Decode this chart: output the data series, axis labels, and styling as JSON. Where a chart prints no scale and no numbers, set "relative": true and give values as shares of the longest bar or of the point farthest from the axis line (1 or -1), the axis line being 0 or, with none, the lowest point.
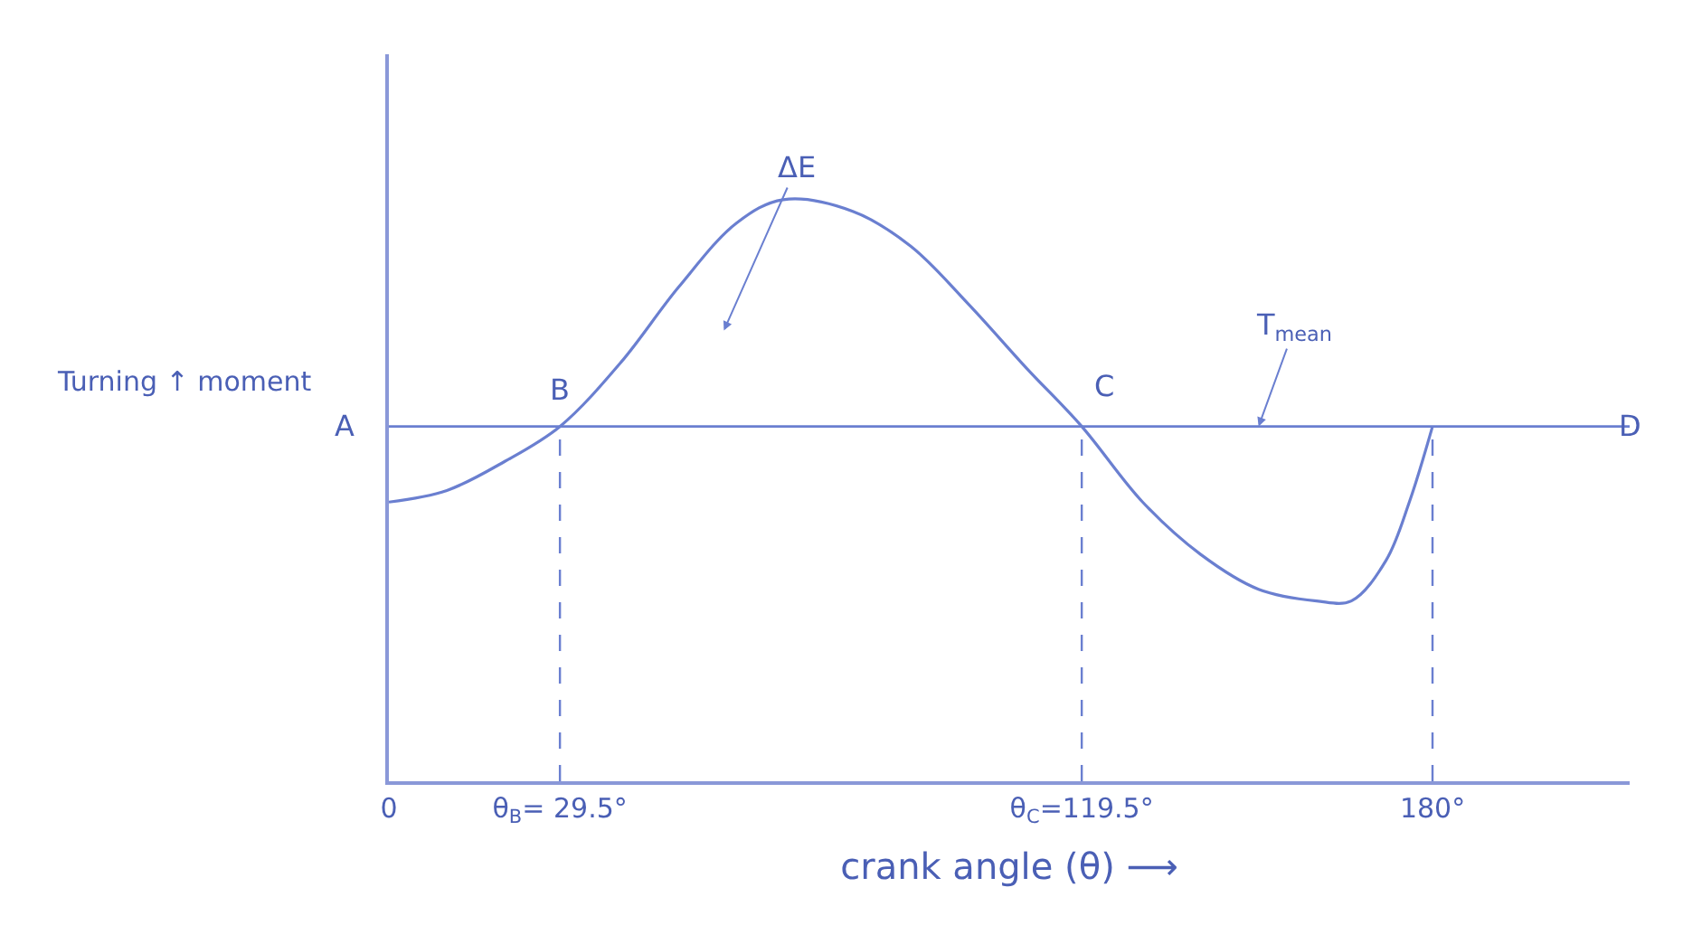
{
  "chart_data": {
    "type": "line",
    "relative": true,
    "xlabel": "crank angle (θ) ⟶",
    "ylabel": "Turning ↑ moment",
    "x": [
      0,
      10,
      20,
      29.5,
      40,
      50,
      60,
      68,
      80,
      90,
      100,
      110,
      119.5,
      130,
      140,
      150,
      160,
      166,
      172,
      176,
      180
    ],
    "series": [
      {
        "color": "#6a7fd0",
        "values": [
          0.48,
          0.5,
          0.55,
          0.61,
          0.72,
          0.85,
          0.96,
          1.0,
          0.98,
          0.92,
          0.82,
          0.71,
          0.61,
          0.48,
          0.39,
          0.33,
          0.31,
          0.31,
          0.38,
          0.48,
          0.61
        ]
      }
    ],
    "xlim": [
      0,
      214
    ],
    "xticks": [
      0,
      {
        "value": 29.5,
        "label": "θ$_{B}$= 29.5°"
      },
      {
        "value": 119.5,
        "label": "θ$_{C}$=119.5°"
      },
      {
        "value": 180,
        "label": "180°"
      }
    ],
    "tick_labels": "x",
    "marker": "none",
    "line_style": "solid",
    "ref_lines": [
      {
        "axis": "y",
        "value": 0.61,
        "label": "T$_{mean}$",
        "color": "#6a7fd0",
        "line_style": "solid"
      },
      {
        "axis": "x",
        "value": 29.5,
        "color": "#6a7fd0",
        "line_style": "dashed"
      },
      {
        "axis": "x",
        "value": 119.5,
        "color": "#6a7fd0",
        "line_style": "dashed"
      },
      {
        "axis": "x",
        "value": 180,
        "color": "#6a7fd0",
        "line_style": "dashed"
      }
    ],
    "annotations": [
      {
        "text": "A",
        "x": 0,
        "y": 0.61
      },
      {
        "text": "B",
        "x": 29.5,
        "y": 0.61
      },
      {
        "text": "C",
        "x": 119.5,
        "y": 0.61
      },
      {
        "text": "D",
        "x": 214,
        "y": 0.61
      },
      "ΔE"
    ]
  }
}
